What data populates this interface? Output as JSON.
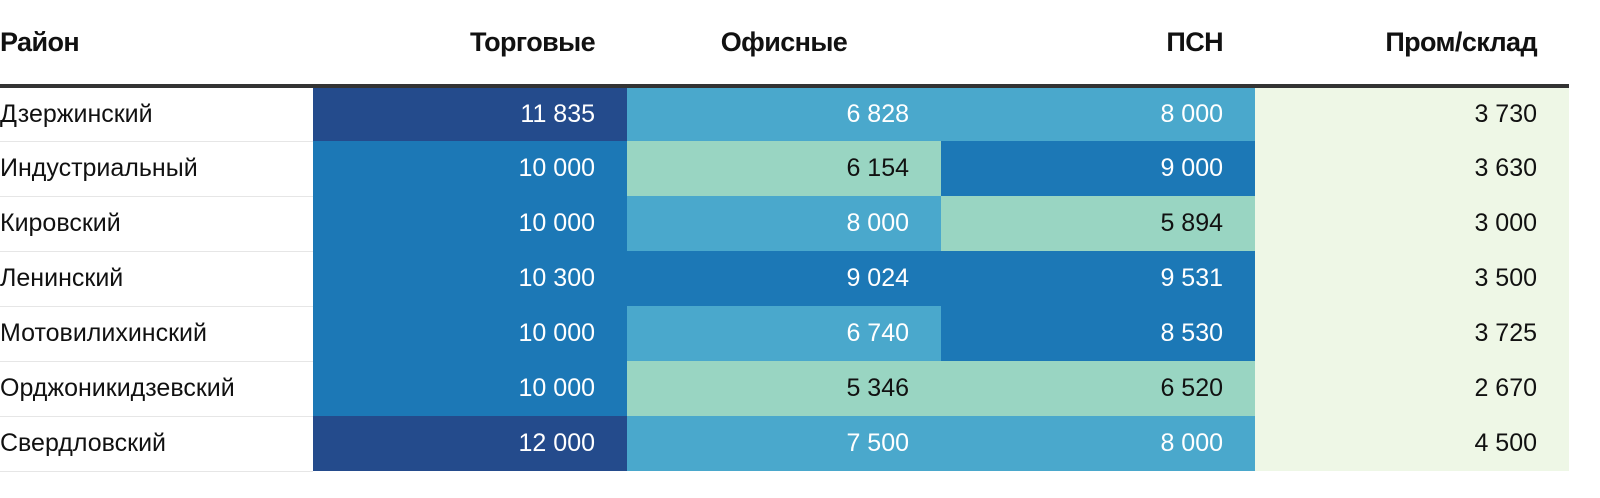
{
  "chart_data": {
    "type": "heatmap",
    "title": "",
    "columns": [
      "Район",
      "Торговые",
      "Офисные",
      "ПСН",
      "Пром/склад"
    ],
    "rows": [
      {
        "name": "Дзержинский",
        "values": [
          11835,
          6828,
          8000,
          3730
        ],
        "labels": [
          "11 835",
          "6 828",
          "8 000",
          "3 730"
        ]
      },
      {
        "name": "Индустриальный",
        "values": [
          10000,
          6154,
          9000,
          3630
        ],
        "labels": [
          "10 000",
          "6 154",
          "9 000",
          "3 630"
        ]
      },
      {
        "name": "Кировский",
        "values": [
          10000,
          8000,
          5894,
          3000
        ],
        "labels": [
          "10 000",
          "8 000",
          "5 894",
          "3 000"
        ]
      },
      {
        "name": "Ленинский",
        "values": [
          10300,
          9024,
          9531,
          3500
        ],
        "labels": [
          "10 300",
          "9 024",
          "9 531",
          "3 500"
        ]
      },
      {
        "name": "Мотовилихинский",
        "values": [
          10000,
          6740,
          8530,
          3725
        ],
        "labels": [
          "10 000",
          "6 740",
          "8 530",
          "3 725"
        ]
      },
      {
        "name": "Орджоникидзевский",
        "values": [
          10000,
          5346,
          6520,
          2670
        ],
        "labels": [
          "10 000",
          "5 346",
          "6 520",
          "2 670"
        ]
      },
      {
        "name": "Свердловский",
        "values": [
          12000,
          7500,
          8000,
          4500
        ],
        "labels": [
          "12 000",
          "7 500",
          "8 000",
          "4 500"
        ]
      }
    ],
    "color_scale": {
      "bins": [
        {
          "min": 0,
          "max": 5000,
          "color": "#eef7e6",
          "text": "#111111"
        },
        {
          "min": 5000,
          "max": 6600,
          "color": "#99d5c2",
          "text": "#111111"
        },
        {
          "min": 6600,
          "max": 8500,
          "color": "#4aa8cc",
          "text": "#ffffff"
        },
        {
          "min": 8500,
          "max": 10500,
          "color": "#1c78b6",
          "text": "#ffffff"
        },
        {
          "min": 10500,
          "max": 99999,
          "color": "#244b8c",
          "text": "#ffffff"
        }
      ]
    }
  }
}
